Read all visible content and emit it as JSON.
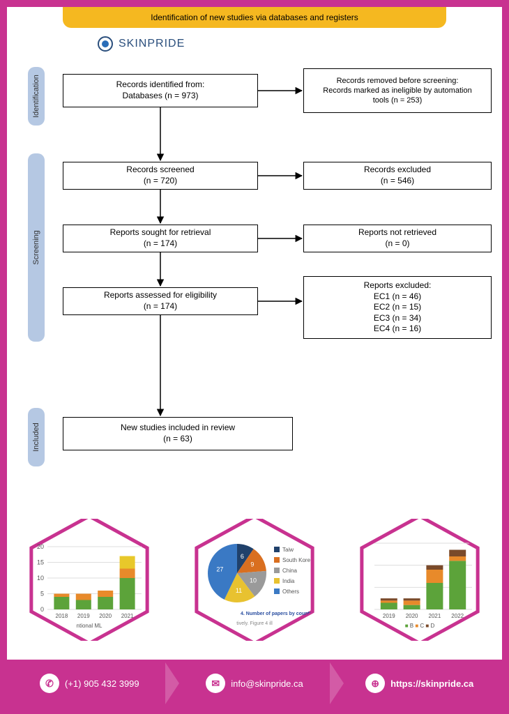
{
  "banner": {
    "title": "Identification of new studies via databases and registers"
  },
  "logo": {
    "brand": "SKINPRIDE"
  },
  "phases": {
    "identification": "Identification",
    "screening": "Screening",
    "included": "Included"
  },
  "boxes": {
    "identified_l1": "Records identified from:",
    "identified_l2": "Databases (n = 973)",
    "removed_l1": "Records removed before screening:",
    "removed_l2": "Records marked as ineligible by automation",
    "removed_l3": "tools (n = 253)",
    "screened_l1": "Records screened",
    "screened_l2": "(n = 720)",
    "excluded_l1": "Records excluded",
    "excluded_l2": "(n = 546)",
    "sought_l1": "Reports sought for retrieval",
    "sought_l2": "(n = 174)",
    "notret_l1": "Reports not retrieved",
    "notret_l2": "(n = 0)",
    "assessed_l1": "Reports assessed for eligibility",
    "assessed_l2": "(n = 174)",
    "repexcl_l1": "Reports excluded:",
    "repexcl_l2": "EC1 (n = 46)",
    "repexcl_l3": "EC2 (n = 15)",
    "repexcl_l4": "EC3 (n = 34)",
    "repexcl_l5": "EC4 (n = 16)",
    "included_l1": "New studies included in review",
    "included_l2": "(n = 63)"
  },
  "hex_border": "#c83290",
  "hex1": {
    "type": "bar",
    "y_ticks": [
      "20",
      "15",
      "10",
      "5",
      "0"
    ],
    "x_labels": [
      "2018",
      "2019",
      "2020",
      "2021"
    ],
    "caption": "ntional ML",
    "colors": {
      "green": "#5ca33a",
      "orange": "#e88a2a",
      "yellow": "#e8c82a"
    },
    "stacks": [
      [
        [
          "green",
          4
        ],
        [
          "orange",
          1
        ]
      ],
      [
        [
          "green",
          3
        ],
        [
          "orange",
          2
        ]
      ],
      [
        [
          "green",
          4
        ],
        [
          "orange",
          2
        ]
      ],
      [
        [
          "green",
          10
        ],
        [
          "orange",
          3
        ],
        [
          "yellow",
          4
        ]
      ]
    ]
  },
  "hex2": {
    "type": "pie",
    "caption": "4. Number of papers by country.",
    "sub": "tively. Figure 4 ill",
    "legend": [
      {
        "label": "Taiw",
        "color": "#20416b"
      },
      {
        "label": "South Kore",
        "color": "#d96f20"
      },
      {
        "label": "China",
        "color": "#9a9a9a"
      },
      {
        "label": "India",
        "color": "#e8c230"
      },
      {
        "label": "Others",
        "color": "#3a79c4"
      }
    ],
    "slices": [
      {
        "value": 6,
        "color": "#20416b"
      },
      {
        "value": 9,
        "color": "#d96f20"
      },
      {
        "value": 10,
        "color": "#9a9a9a"
      },
      {
        "value": 11,
        "color": "#e8c230"
      },
      {
        "value": 27,
        "color": "#3a79c4"
      }
    ]
  },
  "hex3": {
    "type": "bar",
    "x_labels": [
      "2019",
      "2020",
      "2021",
      "2022"
    ],
    "caption": "B   C   D",
    "colors": {
      "green": "#5ca33a",
      "orange": "#e88a2a",
      "brown": "#7a4a2a",
      "yellow": "#e8c82a"
    },
    "stacks": [
      [
        [
          "green",
          3
        ],
        [
          "orange",
          1
        ],
        [
          "brown",
          1
        ]
      ],
      [
        [
          "green",
          2
        ],
        [
          "orange",
          2
        ],
        [
          "brown",
          1
        ]
      ],
      [
        [
          "green",
          12
        ],
        [
          "orange",
          6
        ],
        [
          "brown",
          2
        ]
      ],
      [
        [
          "green",
          22
        ],
        [
          "orange",
          2
        ],
        [
          "brown",
          3
        ]
      ]
    ]
  },
  "footer": {
    "phone": "(+1) 905 432 3999",
    "email": "info@skinpride.ca",
    "url": "https://skinpride.ca"
  }
}
